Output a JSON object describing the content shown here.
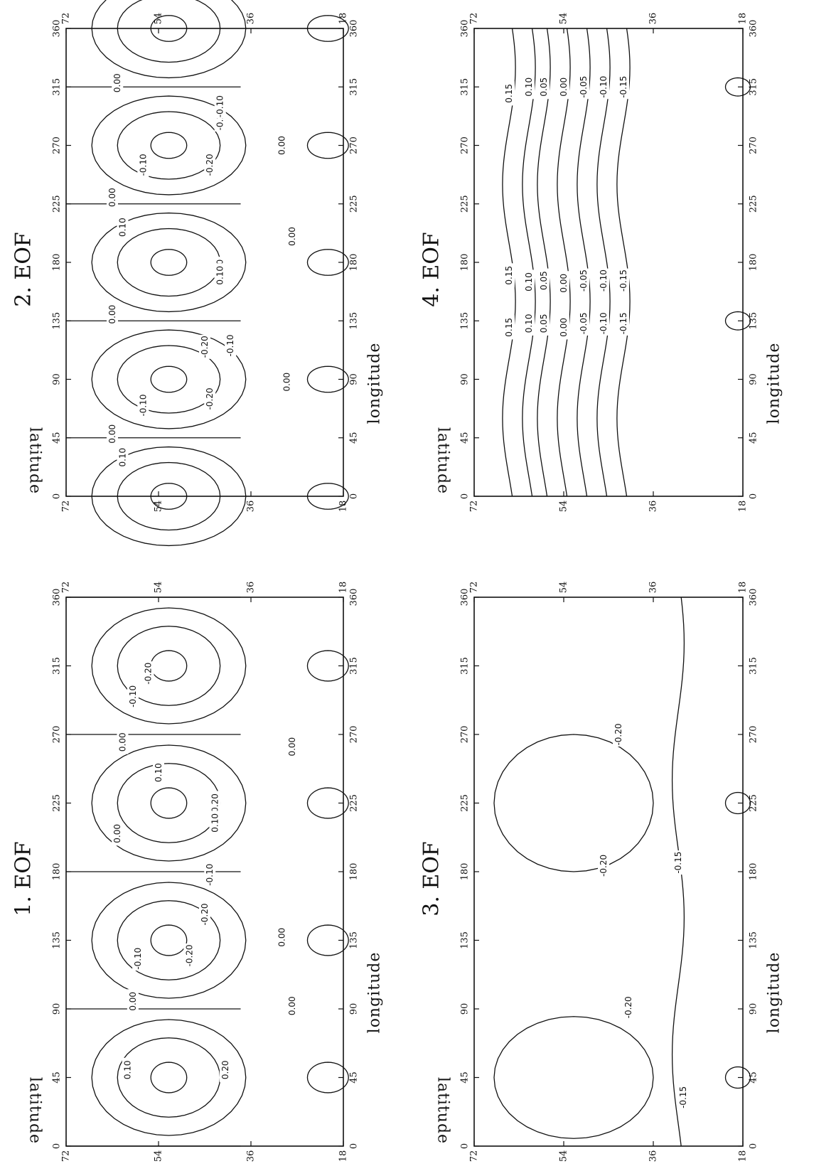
{
  "figure_type": "EOF contour maps (rotated page)",
  "colors": {
    "ink": "#111111",
    "background": "#ffffff"
  },
  "chart_data": [
    {
      "type": "contour",
      "title": "1. EOF",
      "xlabel": "longitude",
      "ylabel": "latitude",
      "xticks": [
        "0",
        "45",
        "90",
        "135",
        "180",
        "225",
        "270",
        "315",
        "360"
      ],
      "yticks": [
        "18",
        "36",
        "54",
        "72"
      ],
      "xlim": [
        0,
        360
      ],
      "ylim": [
        18,
        72
      ],
      "contour_labels": [
        {
          "text": "0.00",
          "lon": 95,
          "lat": 59
        },
        {
          "text": "0.10",
          "lon": 50,
          "lat": 60
        },
        {
          "text": "0.20",
          "lon": 50,
          "lat": 41
        },
        {
          "text": "0.00",
          "lon": 92,
          "lat": 28
        },
        {
          "text": "-0.10",
          "lon": 123,
          "lat": 58
        },
        {
          "text": "-0.20",
          "lon": 125,
          "lat": 48
        },
        {
          "text": "0.00",
          "lon": 137,
          "lat": 30
        },
        {
          "text": "-0.20",
          "lon": 152,
          "lat": 45
        },
        {
          "text": "-0.10",
          "lon": 178,
          "lat": 44
        },
        {
          "text": "0.00",
          "lon": 205,
          "lat": 62
        },
        {
          "text": "0.20",
          "lon": 225,
          "lat": 43
        },
        {
          "text": "0.10",
          "lon": 212,
          "lat": 43
        },
        {
          "text": "0.10",
          "lon": 245,
          "lat": 54
        },
        {
          "text": "0.00",
          "lon": 265,
          "lat": 61
        },
        {
          "text": "0.00",
          "lon": 262,
          "lat": 28
        },
        {
          "text": "-0.10",
          "lon": 295,
          "lat": 59
        },
        {
          "text": "-0.20",
          "lon": 310,
          "lat": 56
        }
      ]
    },
    {
      "type": "contour",
      "title": "2. EOF",
      "xlabel": "longitude",
      "ylabel": "latitude",
      "xticks": [
        "0",
        "45",
        "90",
        "135",
        "180",
        "225",
        "270",
        "315",
        "360"
      ],
      "yticks": [
        "18",
        "36",
        "54",
        "72"
      ],
      "xlim": [
        0,
        360
      ],
      "ylim": [
        18,
        72
      ],
      "contour_labels": [
        {
          "text": "0.10",
          "lon": 30,
          "lat": 61
        },
        {
          "text": "0.00",
          "lon": 48,
          "lat": 63
        },
        {
          "text": "-0.10",
          "lon": 70,
          "lat": 57
        },
        {
          "text": "-0.20",
          "lon": 75,
          "lat": 44
        },
        {
          "text": "0.00",
          "lon": 88,
          "lat": 29
        },
        {
          "text": "-0.20",
          "lon": 115,
          "lat": 45
        },
        {
          "text": "-0.10",
          "lon": 116,
          "lat": 40
        },
        {
          "text": "0.00",
          "lon": 140,
          "lat": 63
        },
        {
          "text": "0.20",
          "lon": 175,
          "lat": 42
        },
        {
          "text": "0.10",
          "lon": 170,
          "lat": 42
        },
        {
          "text": "0.00",
          "lon": 200,
          "lat": 28
        },
        {
          "text": "0.10",
          "lon": 207,
          "lat": 61
        },
        {
          "text": "0.00",
          "lon": 230,
          "lat": 63
        },
        {
          "text": "-0.10",
          "lon": 255,
          "lat": 57
        },
        {
          "text": "-0.20",
          "lon": 255,
          "lat": 44
        },
        {
          "text": "0.00",
          "lon": 270,
          "lat": 30
        },
        {
          "text": "-0.20",
          "lon": 290,
          "lat": 42
        },
        {
          "text": "-0.10",
          "lon": 300,
          "lat": 42
        },
        {
          "text": "0.00",
          "lon": 318,
          "lat": 62
        }
      ]
    },
    {
      "type": "contour",
      "title": "3. EOF",
      "xlabel": "longitude",
      "ylabel": "latitude",
      "xticks": [
        "0",
        "45",
        "90",
        "135",
        "180",
        "225",
        "270",
        "315",
        "360"
      ],
      "yticks": [
        "18",
        "36",
        "54",
        "72"
      ],
      "xlim": [
        0,
        360
      ],
      "ylim": [
        18,
        72
      ],
      "contour_labels": [
        {
          "text": "-0.15",
          "lon": 32,
          "lat": 30
        },
        {
          "text": "-0.20",
          "lon": 91,
          "lat": 41
        },
        {
          "text": "-0.20",
          "lon": 184,
          "lat": 46
        },
        {
          "text": "-0.15",
          "lon": 186,
          "lat": 31
        },
        {
          "text": "-0.20",
          "lon": 270,
          "lat": 43
        }
      ]
    },
    {
      "type": "contour",
      "title": "4. EOF",
      "xlabel": "longitude",
      "ylabel": "latitude",
      "xticks": [
        "0",
        "45",
        "90",
        "135",
        "180",
        "225",
        "270",
        "315",
        "360"
      ],
      "yticks": [
        "18",
        "36",
        "54",
        "72"
      ],
      "xlim": [
        0,
        360
      ],
      "ylim": [
        18,
        72
      ],
      "contour_labels": [
        {
          "text": "0.15",
          "lon": 130,
          "lat": 65
        },
        {
          "text": "0.10",
          "lon": 133,
          "lat": 61
        },
        {
          "text": "0.05",
          "lon": 133,
          "lat": 58
        },
        {
          "text": "0.00",
          "lon": 130,
          "lat": 54
        },
        {
          "text": "-0.05",
          "lon": 133,
          "lat": 50
        },
        {
          "text": "-0.10",
          "lon": 133,
          "lat": 46
        },
        {
          "text": "-0.15",
          "lon": 133,
          "lat": 42
        },
        {
          "text": "0.15",
          "lon": 170,
          "lat": 65
        },
        {
          "text": "0.10",
          "lon": 165,
          "lat": 61
        },
        {
          "text": "0.05",
          "lon": 166,
          "lat": 58
        },
        {
          "text": "0.00",
          "lon": 164,
          "lat": 54
        },
        {
          "text": "-0.05",
          "lon": 166,
          "lat": 50
        },
        {
          "text": "-0.10",
          "lon": 166,
          "lat": 46
        },
        {
          "text": "-0.15",
          "lon": 166,
          "lat": 42
        },
        {
          "text": "0.15",
          "lon": 310,
          "lat": 65
        },
        {
          "text": "0.10",
          "lon": 315,
          "lat": 61
        },
        {
          "text": "0.05",
          "lon": 315,
          "lat": 58
        },
        {
          "text": "0.00",
          "lon": 315,
          "lat": 54
        },
        {
          "text": "-0.05",
          "lon": 315,
          "lat": 50
        },
        {
          "text": "-0.10",
          "lon": 315,
          "lat": 46
        },
        {
          "text": "-0.15",
          "lon": 315,
          "lat": 42
        }
      ]
    }
  ]
}
